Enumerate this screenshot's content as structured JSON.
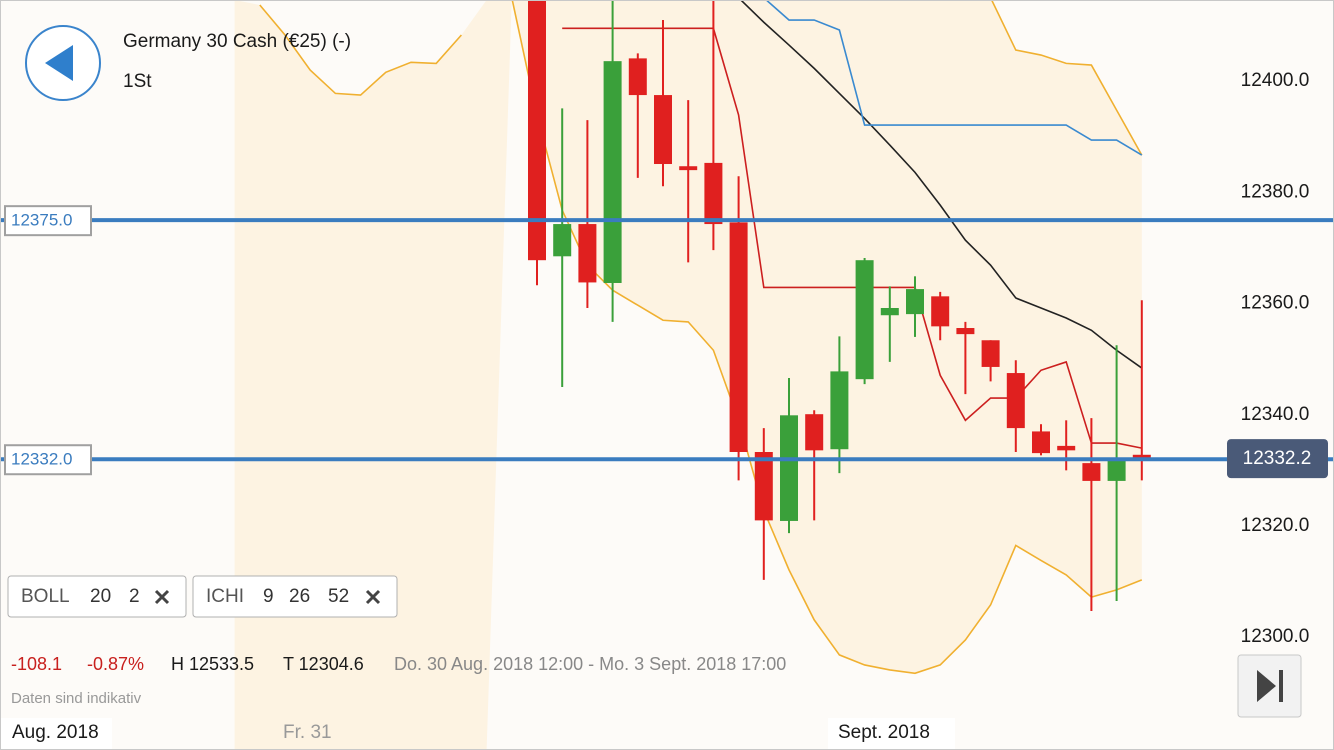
{
  "chart_data": {
    "type": "candlestick",
    "categories": [
      null,
      null,
      null,
      null,
      null,
      null,
      null,
      null,
      null,
      null,
      null,
      null,
      null,
      null,
      null,
      null,
      null,
      null,
      null,
      null,
      null,
      null,
      null,
      null,
      null,
      null,
      null,
      null,
      null,
      null,
      null,
      null,
      null,
      null,
      null,
      null,
      null
    ],
    "open": [
      null,
      null,
      null,
      null,
      null,
      null,
      null,
      null,
      null,
      null,
      null,
      null,
      12415,
      12368.5,
      12374.3,
      12363.7,
      12404.1,
      12397.5,
      12384.7,
      12385.3,
      12374.6,
      12333.3,
      12320.9,
      12340.1,
      12333.8,
      12346.4,
      12357.9,
      12358.1,
      12361.3,
      12355.6,
      12353.4,
      12347.5,
      12337.0,
      12334.4,
      12331.3,
      12328.1,
      12332.8
    ],
    "high": [
      null,
      null,
      null,
      null,
      null,
      null,
      null,
      null,
      null,
      null,
      null,
      null,
      12420,
      12395.1,
      12393.0,
      12416,
      12405.0,
      12411.0,
      12396.6,
      12416,
      12382.9,
      12337.6,
      12346.6,
      12340.8,
      12354.1,
      12368.2,
      12363.1,
      12364.9,
      12362.1,
      12356.7,
      12353.4,
      12349.8,
      12338.3,
      12339.0,
      12339.4,
      12352.5,
      12360.6
    ],
    "low": [
      null,
      null,
      null,
      null,
      null,
      null,
      null,
      null,
      null,
      null,
      null,
      null,
      12363.3,
      12345.0,
      12359.2,
      12356.7,
      12382.6,
      12381.1,
      12367.4,
      12369.6,
      12328.2,
      12310.3,
      12318.7,
      12321.0,
      12329.5,
      12345.5,
      12349.5,
      12354.0,
      12353.4,
      12343.7,
      12346.0,
      12333.3,
      12332.7,
      12330.0,
      12304.7,
      12306.5,
      12328.2
    ],
    "close": [
      null,
      null,
      null,
      null,
      null,
      null,
      null,
      null,
      null,
      null,
      null,
      null,
      12367.8,
      12374.3,
      12363.8,
      12403.6,
      12397.5,
      12385.1,
      12384.0,
      12374.3,
      12333.3,
      12321.0,
      12339.9,
      12333.6,
      12347.8,
      12367.8,
      12359.2,
      12362.6,
      12355.9,
      12354.5,
      12348.6,
      12337.6,
      12333.1,
      12333.6,
      12328.1,
      12331.8,
      12332.2
    ],
    "up_color": "#3aa03a",
    "down_color": "#e0201f",
    "lines": [
      {
        "color": "#f0b030",
        "values": [
          null,
          12413.7,
          12408.3,
          12402,
          12397.8,
          12397.5,
          12401.6,
          12403.4,
          12403.2,
          12408.3,
          null,
          null,
          null,
          null,
          null,
          null,
          null,
          null,
          null,
          null,
          null,
          null,
          null,
          null,
          null,
          null,
          null,
          null,
          null,
          null,
          12415,
          12405.6,
          12404.7,
          12403.2,
          12402.9,
          12394.8,
          12386.7
        ]
      },
      {
        "color": "#f0b030",
        "values": [
          null,
          null,
          null,
          null,
          null,
          null,
          null,
          null,
          null,
          null,
          null,
          12415,
          12393.9,
          12376.8,
          12366.9,
          12362.4,
          12359.7,
          12357.0,
          12356.7,
          12351.6,
          12339.0,
          12322.8,
          12312.1,
          12303.1,
          12296.8,
          12295.0,
          12294.1,
          12293.5,
          12295.0,
          12299.5,
          12305.8,
          12316.5,
          12313.8,
          12311.2,
          12307.2,
          12308.5,
          12310.3
        ]
      },
      {
        "color": "#cc1f1f",
        "values": [
          null,
          null,
          null,
          null,
          null,
          null,
          null,
          null,
          null,
          null,
          null,
          null,
          null,
          12409.5,
          12409.5,
          12409.5,
          12409.5,
          12409.5,
          12409.5,
          12409.5,
          12393.9,
          12362.9,
          12362.9,
          12362.9,
          12362.9,
          12362.9,
          12362.9,
          12362.9,
          12347.1,
          12339.0,
          12343.0,
          12343.0,
          12348.0,
          12349.5,
          12334.9,
          12334.9,
          12334.0
        ]
      },
      {
        "color": "#222222",
        "values": [
          null,
          null,
          null,
          null,
          null,
          null,
          null,
          null,
          null,
          null,
          null,
          null,
          null,
          null,
          null,
          null,
          null,
          null,
          null,
          null,
          12415,
          12410.6,
          12406.5,
          12402.3,
          12397.8,
          12393.3,
          12388.5,
          12383.6,
          12377.7,
          12371.4,
          12366.9,
          12361.0,
          12359.2,
          12357.4,
          12355.2,
          12351.6,
          12348.4
        ]
      },
      {
        "color": "#3a8ad0",
        "values": [
          null,
          null,
          null,
          null,
          null,
          null,
          null,
          null,
          null,
          null,
          null,
          null,
          null,
          null,
          null,
          null,
          null,
          null,
          null,
          null,
          null,
          12415,
          12411.0,
          12411.0,
          12409.2,
          12392.1,
          12392.1,
          12392.1,
          12392.1,
          12392.1,
          12392.1,
          12392.1,
          12392.1,
          12392.1,
          12389.4,
          12389.4,
          12386.7
        ]
      }
    ],
    "band_fill": "#fdf3e2",
    "levels": [
      {
        "value": 12375,
        "label": "12375.0"
      },
      {
        "value": 12332,
        "label": "12332.0"
      }
    ],
    "level_color": "#3a7cbf",
    "last_price": 12332.2,
    "ylim": [
      12279.7,
      12414.6
    ],
    "yticks": [
      {
        "value": 12300,
        "label": "12300.0"
      },
      {
        "value": 12320,
        "label": "12320.0"
      },
      {
        "value": 12340,
        "label": "12340.0"
      },
      {
        "value": 12360,
        "label": "12360.0"
      },
      {
        "value": 12380,
        "label": "12380.0"
      },
      {
        "value": 12400,
        "label": "12400.0"
      }
    ],
    "grid": false
  },
  "ui": {
    "title": "Germany 30 Cash (€25) (-)",
    "subtitle": "1St",
    "indicators": [
      {
        "name": "BOLL",
        "params": [
          20,
          2
        ]
      },
      {
        "name": "ICHI",
        "params": [
          9,
          26,
          52
        ]
      }
    ],
    "change": "-108.1",
    "change_pct": "-0.87%",
    "high": "H 12533.5",
    "low": "T 12304.6",
    "range": "Do. 30 Aug. 2018 12:00 - Mo. 3 Sept. 2018 17:00",
    "note": "Daten sind indikativ",
    "x_labels": [
      "Aug. 2018",
      "Fr. 31",
      "Sept. 2018"
    ]
  }
}
